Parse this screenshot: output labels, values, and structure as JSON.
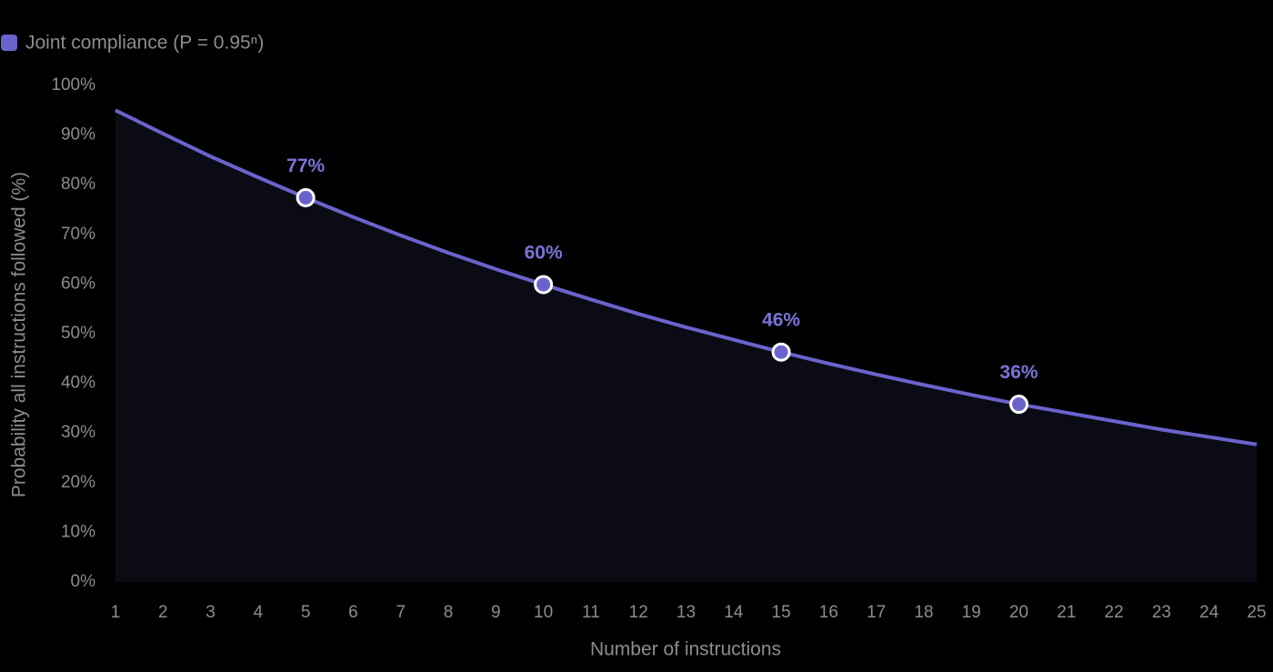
{
  "chart_data": {
    "type": "line",
    "x_label": "Number of instructions",
    "y_label": "Probability all instructions followed (%)",
    "x": [
      1,
      2,
      3,
      4,
      5,
      6,
      7,
      8,
      9,
      10,
      11,
      12,
      13,
      14,
      15,
      16,
      17,
      18,
      19,
      20,
      21,
      22,
      23,
      24,
      25
    ],
    "series": [
      {
        "name": "Joint compliance (P = 0.95ⁿ)",
        "color": "#6b63cc",
        "values": [
          95.0,
          90.3,
          85.7,
          81.5,
          77.4,
          73.5,
          69.8,
          66.3,
          63.0,
          59.9,
          56.9,
          54.0,
          51.3,
          48.8,
          46.3,
          44.0,
          41.8,
          39.7,
          37.7,
          35.8,
          34.1,
          32.4,
          30.7,
          29.2,
          27.7
        ],
        "value_labels": [
          null,
          null,
          null,
          null,
          "77%",
          null,
          null,
          null,
          null,
          "60%",
          null,
          null,
          null,
          null,
          "46%",
          null,
          null,
          null,
          null,
          "36%",
          null,
          null,
          null,
          null,
          null
        ]
      }
    ],
    "area_fill": "#0b0b16",
    "xlim": [
      1,
      25
    ],
    "ylim": [
      0,
      100
    ],
    "xticks": [
      1,
      2,
      3,
      4,
      5,
      6,
      7,
      8,
      9,
      10,
      11,
      12,
      13,
      14,
      15,
      16,
      17,
      18,
      19,
      20,
      21,
      22,
      23,
      24,
      25
    ],
    "yticks": [
      {
        "value": 0,
        "label": "0%"
      },
      {
        "value": 10,
        "label": "10%"
      },
      {
        "value": 20,
        "label": "20%"
      },
      {
        "value": 30,
        "label": "30%"
      },
      {
        "value": 40,
        "label": "40%"
      },
      {
        "value": 50,
        "label": "50%"
      },
      {
        "value": 60,
        "label": "60%"
      },
      {
        "value": 70,
        "label": "70%"
      },
      {
        "value": 80,
        "label": "80%"
      },
      {
        "value": 90,
        "label": "90%"
      },
      {
        "value": 100,
        "label": "100%"
      }
    ],
    "grid": false,
    "legend": "top-left"
  }
}
